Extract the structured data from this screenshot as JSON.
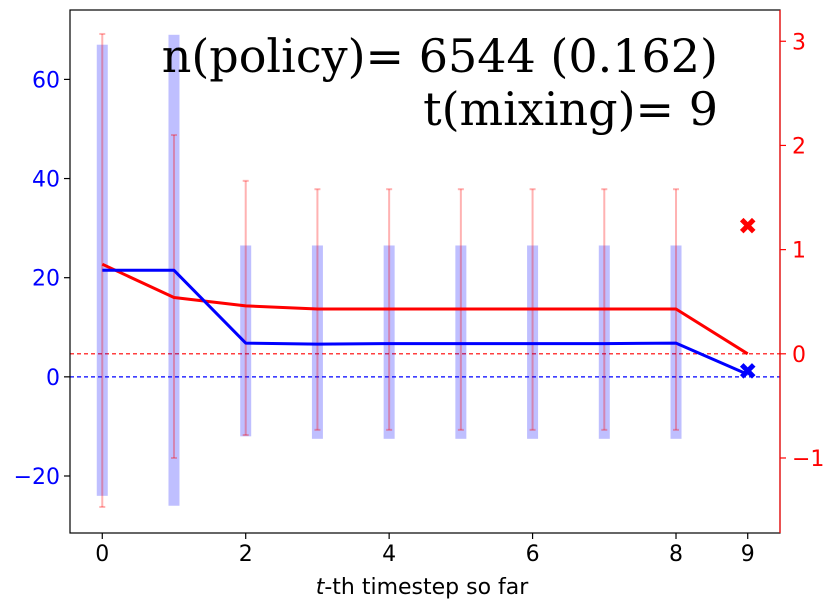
{
  "chart_data": {
    "type": "line",
    "xlabel_italic": "t",
    "xlabel_rest": "-th timestep so far",
    "x_ticks": [
      "0",
      "2",
      "4",
      "6",
      "8",
      "9"
    ],
    "x_tick_values": [
      0,
      2,
      4,
      6,
      8,
      9
    ],
    "xlim": [
      -0.45,
      9.45
    ],
    "left_axis": {
      "color": "#0000ff",
      "ylim": [
        -31.5,
        74
      ],
      "ticks": [
        -20,
        0,
        20,
        40,
        60
      ],
      "tick_labels": [
        "−20",
        "0",
        "20",
        "40",
        "60"
      ]
    },
    "right_axis": {
      "color": "#ff0000",
      "ylim": [
        -1.72,
        3.3
      ],
      "ticks": [
        -1,
        0,
        1,
        2,
        3
      ],
      "tick_labels": [
        "−1",
        "0",
        "1",
        "2",
        "3"
      ]
    },
    "series": [
      {
        "axis": "left",
        "color": "#0000ff",
        "x": [
          0,
          1,
          2,
          3,
          4,
          5,
          6,
          7,
          8,
          9
        ],
        "values": [
          21.5,
          21.5,
          6.8,
          6.6,
          6.7,
          6.7,
          6.7,
          6.7,
          6.8,
          0.5
        ],
        "bar_low": [
          -24,
          -26,
          -12,
          -12.5,
          -12.5,
          -12.5,
          -12.5,
          -12.5,
          -12.5,
          null
        ],
        "bar_high": [
          67,
          69,
          26.5,
          26.5,
          26.5,
          26.5,
          26.5,
          26.5,
          26.5,
          null
        ]
      },
      {
        "axis": "right",
        "color": "#ff0000",
        "x": [
          0,
          1,
          2,
          3,
          4,
          5,
          6,
          7,
          8,
          9
        ],
        "values": [
          0.86,
          0.54,
          0.46,
          0.43,
          0.43,
          0.43,
          0.43,
          0.43,
          0.43,
          0.0
        ],
        "err_low": [
          -1.47,
          -1.0,
          -0.78,
          -0.73,
          -0.73,
          -0.73,
          -0.73,
          -0.73,
          -0.73,
          null
        ],
        "err_high": [
          3.07,
          2.1,
          1.66,
          1.58,
          1.58,
          1.58,
          1.58,
          1.58,
          1.58,
          null
        ]
      }
    ],
    "markers": [
      {
        "axis": "right",
        "x": 9,
        "y": 1.23,
        "color": "#ff0000",
        "shape": "x"
      },
      {
        "axis": "left",
        "x": 9,
        "y": 1.2,
        "color": "#0000ff",
        "shape": "x"
      }
    ],
    "reference_lines": [
      {
        "axis": "left",
        "y": 0,
        "color": "#0000ff",
        "style": "dashed"
      },
      {
        "axis": "right",
        "y": 0,
        "color": "#ff0000",
        "style": "dashed"
      }
    ],
    "annotation_line1": "n(policy)= 6544 (0.162)",
    "annotation_line2": "t(mixing)= 9"
  }
}
